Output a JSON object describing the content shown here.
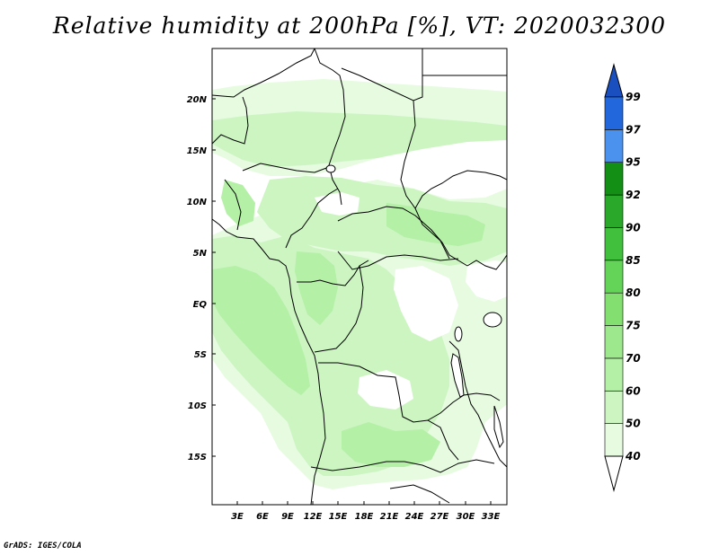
{
  "title": "Relative humidity at 200hPa [%], VT: 2020032300",
  "credit": "GrADS: IGES/COLA",
  "map": {
    "lat_labels": [
      "20N",
      "15N",
      "10N",
      "5N",
      "EQ",
      "5S",
      "10S",
      "15S"
    ],
    "lon_labels": [
      "3E",
      "6E",
      "9E",
      "12E",
      "15E",
      "18E",
      "21E",
      "24E",
      "27E",
      "30E",
      "33E"
    ]
  },
  "colorbar": {
    "labels": [
      "40",
      "50",
      "60",
      "70",
      "75",
      "80",
      "85",
      "90",
      "92",
      "95",
      "97",
      "99"
    ],
    "colors": [
      "#ffffff",
      "#e6fbe0",
      "#ccf5c2",
      "#b4f0a6",
      "#9de88c",
      "#83e070",
      "#63d458",
      "#40c03c",
      "#2aa82a",
      "#128f14",
      "#4a92ee",
      "#2268dc",
      "#1a4fc0"
    ]
  },
  "field_colors": {
    "rh_50_60": "#e6fbe0",
    "rh_60_70": "#ccf5c2",
    "rh_70_75": "#b4f0a6"
  }
}
